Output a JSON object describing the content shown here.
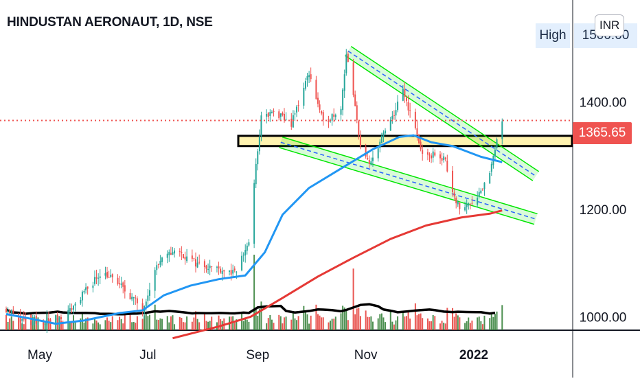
{
  "title": "HINDUSTAN AERONAUT, 1D, NSE",
  "currency_badge": "INR",
  "high_button_label": "High",
  "high_value_label": "1500.00",
  "last_price_label": "1365.65",
  "colors": {
    "up": "#26a69a",
    "down": "#ef5350",
    "volume_up": "#2e7d32",
    "volume_down": "#e53935",
    "ma_fast": "#2196f3",
    "ma_slow": "#e53935",
    "volume_ma": "#000000",
    "support_band": "#fff3b0",
    "channel": "#00e600",
    "last_price": "#ef5350"
  },
  "chart_data": {
    "type": "candlestick",
    "title": "HINDUSTAN AERONAUT, 1D, NSE",
    "x_axis_labels": [
      "May",
      "Jul",
      "Sep",
      "Nov",
      "2022"
    ],
    "y_axis_labels": [
      "1000.00",
      "1200.00",
      "1400.00",
      "1500.00"
    ],
    "ylim": [
      975,
      1590
    ],
    "last_price": 1365.65,
    "period_high": 1500,
    "support_zone": [
      1318,
      1337
    ],
    "anchors": [
      {
        "date": "2021-04-12",
        "close": 1015
      },
      {
        "date": "2021-04-25",
        "close": 985
      },
      {
        "date": "2021-05-15",
        "close": 1000
      },
      {
        "date": "2021-05-26",
        "close": 1045
      },
      {
        "date": "2021-06-05",
        "close": 1085
      },
      {
        "date": "2021-06-15",
        "close": 1060
      },
      {
        "date": "2021-06-28",
        "close": 1015
      },
      {
        "date": "2021-07-06",
        "close": 1095
      },
      {
        "date": "2021-07-16",
        "close": 1125
      },
      {
        "date": "2021-07-28",
        "close": 1100
      },
      {
        "date": "2021-08-10",
        "close": 1090
      },
      {
        "date": "2021-08-19",
        "close": 1080
      },
      {
        "date": "2021-08-27",
        "close": 1140
      },
      {
        "date": "2021-08-31",
        "close": 1280
      },
      {
        "date": "2021-09-03",
        "close": 1370
      },
      {
        "date": "2021-09-10",
        "close": 1380
      },
      {
        "date": "2021-09-20",
        "close": 1360
      },
      {
        "date": "2021-09-30",
        "close": 1455
      },
      {
        "date": "2021-10-08",
        "close": 1360
      },
      {
        "date": "2021-10-18",
        "close": 1390
      },
      {
        "date": "2021-10-21",
        "close": 1490
      },
      {
        "date": "2021-10-25",
        "close": 1410
      },
      {
        "date": "2021-10-29",
        "close": 1320
      },
      {
        "date": "2021-11-03",
        "close": 1280
      },
      {
        "date": "2021-11-08",
        "close": 1320
      },
      {
        "date": "2021-11-16",
        "close": 1370
      },
      {
        "date": "2021-11-22",
        "close": 1420
      },
      {
        "date": "2021-11-29",
        "close": 1350
      },
      {
        "date": "2021-12-04",
        "close": 1290
      },
      {
        "date": "2021-12-10",
        "close": 1305
      },
      {
        "date": "2021-12-16",
        "close": 1290
      },
      {
        "date": "2021-12-20",
        "close": 1235
      },
      {
        "date": "2021-12-24",
        "close": 1200
      },
      {
        "date": "2021-12-31",
        "close": 1215
      },
      {
        "date": "2022-01-06",
        "close": 1240
      },
      {
        "date": "2022-01-11",
        "close": 1280
      },
      {
        "date": "2022-01-14",
        "close": 1325
      },
      {
        "date": "2022-01-17",
        "close": 1366
      }
    ],
    "ma_fast": [
      {
        "date": "2021-04-12",
        "value": 1005
      },
      {
        "date": "2021-04-25",
        "value": 997
      },
      {
        "date": "2021-05-10",
        "value": 987
      },
      {
        "date": "2021-05-26",
        "value": 993
      },
      {
        "date": "2021-06-15",
        "value": 1007
      },
      {
        "date": "2021-06-28",
        "value": 1012
      },
      {
        "date": "2021-07-10",
        "value": 1040
      },
      {
        "date": "2021-07-25",
        "value": 1058
      },
      {
        "date": "2021-08-10",
        "value": 1070
      },
      {
        "date": "2021-08-25",
        "value": 1077
      },
      {
        "date": "2021-09-05",
        "value": 1120
      },
      {
        "date": "2021-09-15",
        "value": 1190
      },
      {
        "date": "2021-09-30",
        "value": 1240
      },
      {
        "date": "2021-10-20",
        "value": 1280
      },
      {
        "date": "2021-11-05",
        "value": 1312
      },
      {
        "date": "2021-11-20",
        "value": 1335
      },
      {
        "date": "2021-11-28",
        "value": 1338
      },
      {
        "date": "2021-12-08",
        "value": 1325
      },
      {
        "date": "2021-12-20",
        "value": 1318
      },
      {
        "date": "2022-01-05",
        "value": 1298
      },
      {
        "date": "2022-01-17",
        "value": 1288
      }
    ],
    "ma_slow": [
      {
        "date": "2021-07-15",
        "value": 960
      },
      {
        "date": "2021-08-10",
        "value": 982
      },
      {
        "date": "2021-08-28",
        "value": 1000
      },
      {
        "date": "2021-09-15",
        "value": 1035
      },
      {
        "date": "2021-10-05",
        "value": 1075
      },
      {
        "date": "2021-10-25",
        "value": 1110
      },
      {
        "date": "2021-11-15",
        "value": 1145
      },
      {
        "date": "2021-12-05",
        "value": 1170
      },
      {
        "date": "2021-12-25",
        "value": 1185
      },
      {
        "date": "2022-01-10",
        "value": 1192
      },
      {
        "date": "2022-01-17",
        "value": 1198
      }
    ],
    "channels": [
      {
        "name": "upper",
        "from": {
          "date": "2021-10-22",
          "value": 1495
        },
        "to": {
          "date": "2022-02-05",
          "value": 1262
        }
      },
      {
        "name": "lower",
        "from": {
          "date": "2021-09-14",
          "value": 1325
        },
        "to": {
          "date": "2022-02-05",
          "value": 1182
        }
      }
    ]
  }
}
